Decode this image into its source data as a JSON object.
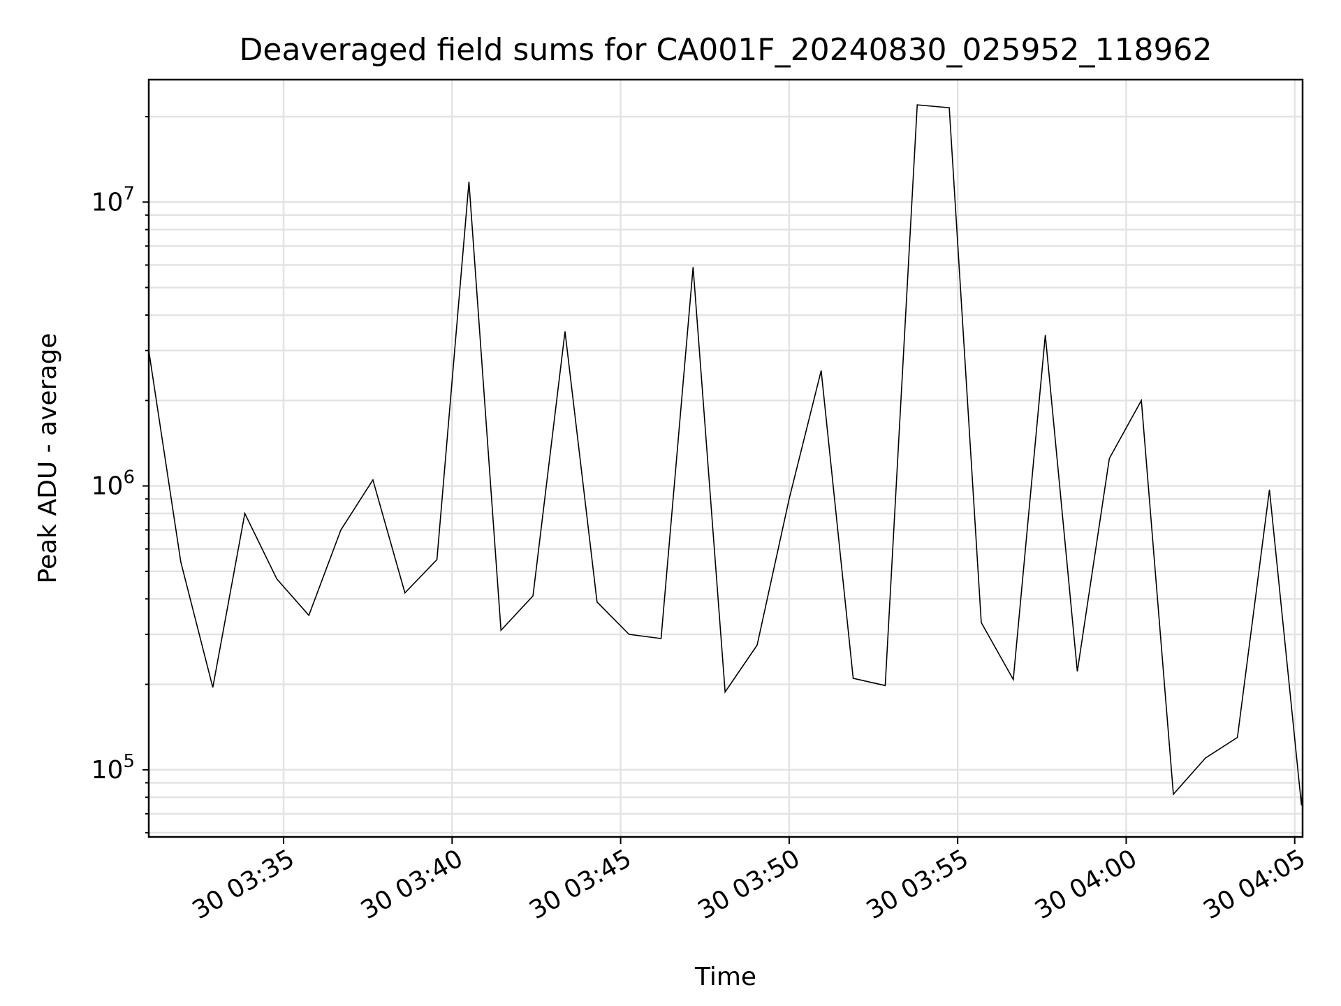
{
  "chart_data": {
    "type": "line",
    "title": "Deaveraged field sums for CA001F_20240830_025952_118962",
    "xlabel": "Time",
    "ylabel": "Peak ADU - average",
    "yscale": "log",
    "xlim": [
      "2024-08-30 03:31:00",
      "2024-08-30 04:05:14"
    ],
    "ylim": [
      58000,
      27000000
    ],
    "grid": true,
    "x_ticks": [
      {
        "value": "2024-08-30 03:35:00",
        "label": "30 03:35"
      },
      {
        "value": "2024-08-30 03:40:00",
        "label": "30 03:40"
      },
      {
        "value": "2024-08-30 03:45:00",
        "label": "30 03:45"
      },
      {
        "value": "2024-08-30 03:50:00",
        "label": "30 03:50"
      },
      {
        "value": "2024-08-30 03:55:00",
        "label": "30 03:55"
      },
      {
        "value": "2024-08-30 04:00:00",
        "label": "30 04:00"
      },
      {
        "value": "2024-08-30 04:05:00",
        "label": "30 04:05"
      }
    ],
    "y_ticks": [
      {
        "value": 100000,
        "base": "10",
        "exp": "5"
      },
      {
        "value": 1000000,
        "base": "10",
        "exp": "6"
      },
      {
        "value": 10000000,
        "base": "10",
        "exp": "7"
      }
    ],
    "series": [
      {
        "color": "#000000",
        "points": [
          [
            "2024-08-30 03:31:00",
            3000000
          ],
          [
            "2024-08-30 03:31:57",
            540000
          ],
          [
            "2024-08-30 03:32:54",
            195000
          ],
          [
            "2024-08-30 03:33:51",
            800000
          ],
          [
            "2024-08-30 03:34:48",
            470000
          ],
          [
            "2024-08-30 03:35:45",
            350000
          ],
          [
            "2024-08-30 03:36:42",
            700000
          ],
          [
            "2024-08-30 03:37:39",
            1050000
          ],
          [
            "2024-08-30 03:38:36",
            420000
          ],
          [
            "2024-08-30 03:39:33",
            550000
          ],
          [
            "2024-08-30 03:40:30",
            11800000
          ],
          [
            "2024-08-30 03:41:27",
            310000
          ],
          [
            "2024-08-30 03:42:24",
            410000
          ],
          [
            "2024-08-30 03:43:21",
            3500000
          ],
          [
            "2024-08-30 03:44:18",
            390000
          ],
          [
            "2024-08-30 03:45:15",
            300000
          ],
          [
            "2024-08-30 03:46:12",
            290000
          ],
          [
            "2024-08-30 03:47:09",
            5900000
          ],
          [
            "2024-08-30 03:48:06",
            188000
          ],
          [
            "2024-08-30 03:49:03",
            275000
          ],
          [
            "2024-08-30 03:50:00",
            900000
          ],
          [
            "2024-08-30 03:50:57",
            2550000
          ],
          [
            "2024-08-30 03:51:54",
            210000
          ],
          [
            "2024-08-30 03:52:51",
            198000
          ],
          [
            "2024-08-30 03:53:48",
            22000000
          ],
          [
            "2024-08-30 03:54:45",
            21500000
          ],
          [
            "2024-08-30 03:55:42",
            330000
          ],
          [
            "2024-08-30 03:56:39",
            208000
          ],
          [
            "2024-08-30 03:57:36",
            3400000
          ],
          [
            "2024-08-30 03:58:33",
            222000
          ],
          [
            "2024-08-30 03:59:30",
            1250000
          ],
          [
            "2024-08-30 04:00:27",
            2000000
          ],
          [
            "2024-08-30 04:01:24",
            82000
          ],
          [
            "2024-08-30 04:02:21",
            110000
          ],
          [
            "2024-08-30 04:03:18",
            130000
          ],
          [
            "2024-08-30 04:04:15",
            970000
          ],
          [
            "2024-08-30 04:05:12",
            75000
          ],
          [
            "2024-08-30 04:05:14",
            87000
          ]
        ]
      }
    ]
  }
}
